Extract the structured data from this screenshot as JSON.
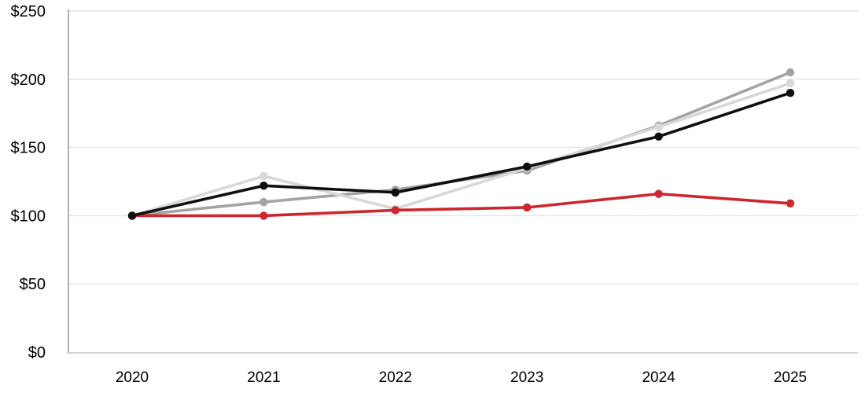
{
  "chart_data": {
    "type": "line",
    "title": "",
    "xlabel": "",
    "ylabel": "",
    "x": [
      2020,
      2021,
      2022,
      2023,
      2024,
      2025
    ],
    "xtick_labels": [
      "2020",
      "2021",
      "2022",
      "2023",
      "2024",
      "2025"
    ],
    "ytick_values": [
      0,
      50,
      100,
      150,
      200,
      250
    ],
    "ytick_labels": [
      "$0",
      "$50",
      "$100",
      "$150",
      "$200",
      "$250"
    ],
    "ylim": [
      0,
      250
    ],
    "value_format": "USD indexed to $100 in 2020",
    "grid": true,
    "legend": "none",
    "series": [
      {
        "name": "Gray",
        "color": "#a3a3a3",
        "values": [
          100,
          110,
          119,
          133,
          166,
          205
        ]
      },
      {
        "name": "Light gray",
        "color": "#d8d8d8",
        "values": [
          100,
          129,
          105,
          135,
          165,
          197
        ]
      },
      {
        "name": "Red",
        "color": "#cd262e",
        "values": [
          100,
          100,
          104,
          106,
          116,
          109
        ]
      },
      {
        "name": "Black",
        "color": "#0f0f0f",
        "values": [
          100,
          122,
          117,
          136,
          158,
          190
        ]
      }
    ],
    "axis_colors": {
      "gridline": "#e4e4e4",
      "y_axis_line": "#9e9e9e",
      "x_axis_line": "#d4d4d4"
    }
  }
}
